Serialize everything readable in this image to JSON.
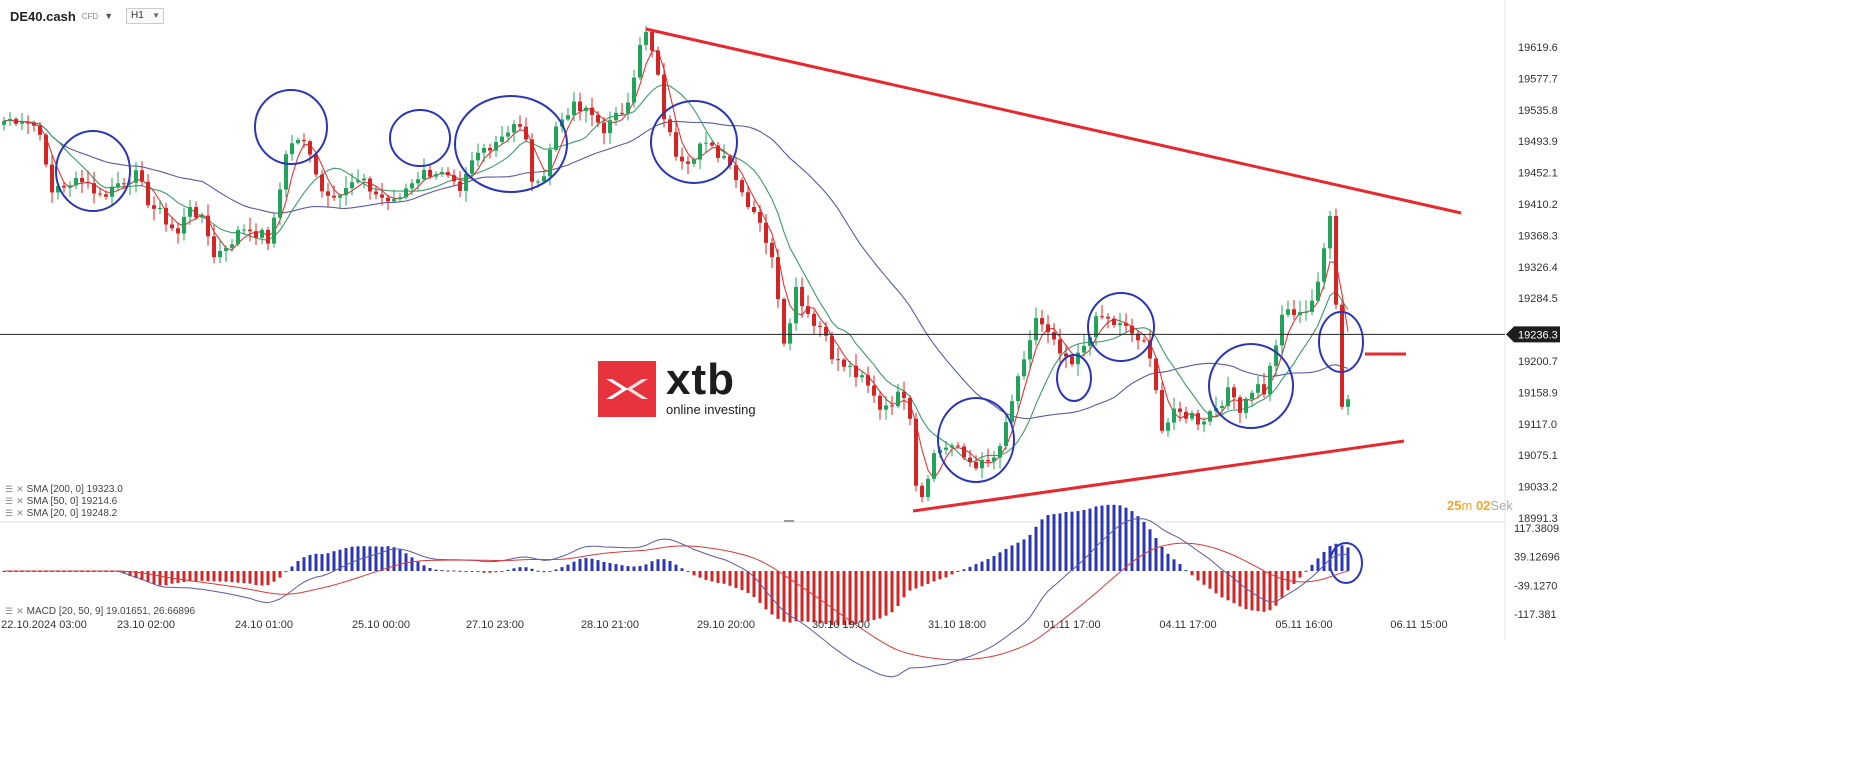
{
  "header": {
    "symbol": "DE40.cash",
    "instrument_type": "CFD",
    "timeframe": "H1"
  },
  "logo": {
    "brand": "xtb",
    "tagline": "online investing"
  },
  "indicators": [
    {
      "label": "SMA [200, 0] 19323.0",
      "color": "#5a5aa8"
    },
    {
      "label": "SMA [50, 0] 19214.6",
      "color": "#3d9a6a"
    },
    {
      "label": "SMA [20, 0] 19248.2",
      "color": "#d93a3a"
    }
  ],
  "macd_label": "MACD [20, 50, 9] 19.01651, 26.66896",
  "timer": {
    "minutes": "25",
    "m_unit": "m",
    "seconds": "02",
    "s_unit": "Sek"
  },
  "current_price": "19236.3",
  "colors": {
    "bull": "#22a35a",
    "bear": "#d42424",
    "annotation_line": "#e8282f",
    "annotation_circle": "#2a35b8",
    "price_tag": "#1e1e1e"
  },
  "chart_data": {
    "type": "candlestick",
    "price_axis": {
      "ticks": [
        "19619.6",
        "19577.7",
        "19535.8",
        "19493.9",
        "19452.1",
        "19410.2",
        "19368.3",
        "19326.4",
        "19284.5",
        "19200.7",
        "19158.9",
        "19117.0",
        "19075.1",
        "19033.2",
        "18991.3"
      ],
      "range": [
        18991.3,
        19647
      ]
    },
    "time_axis": {
      "ticks": [
        "22.10.2024  03:00",
        "23.10  02:00",
        "24.10  01:00",
        "25.10  00:00",
        "27.10  23:00",
        "28.10  21:00",
        "29.10  20:00",
        "30.10  19:00",
        "31.10  18:00",
        "01.11  17:00",
        "04.11  17:00",
        "05.11  16:00",
        "06.11  15:00"
      ]
    },
    "macd_axis": {
      "ticks": [
        "117.3809",
        "39.12696",
        "-39.1270",
        "-117.381"
      ],
      "range": [
        -117.381,
        117.3809
      ]
    },
    "price_waypoints": [
      [
        0,
        19520
      ],
      [
        20,
        19525
      ],
      [
        40,
        19510
      ],
      [
        50,
        19420
      ],
      [
        60,
        19440
      ],
      [
        70,
        19430
      ],
      [
        80,
        19450
      ],
      [
        100,
        19420
      ],
      [
        110,
        19430
      ],
      [
        120,
        19440
      ],
      [
        135,
        19450
      ],
      [
        150,
        19410
      ],
      [
        165,
        19390
      ],
      [
        178,
        19370
      ],
      [
        190,
        19410
      ],
      [
        205,
        19380
      ],
      [
        215,
        19340
      ],
      [
        230,
        19360
      ],
      [
        245,
        19380
      ],
      [
        260,
        19370
      ],
      [
        270,
        19360
      ],
      [
        278,
        19410
      ],
      [
        285,
        19480
      ],
      [
        300,
        19500
      ],
      [
        315,
        19460
      ],
      [
        325,
        19420
      ],
      [
        340,
        19430
      ],
      [
        360,
        19440
      ],
      [
        380,
        19420
      ],
      [
        395,
        19410
      ],
      [
        410,
        19440
      ],
      [
        420,
        19450
      ],
      [
        435,
        19455
      ],
      [
        450,
        19440
      ],
      [
        460,
        19420
      ],
      [
        470,
        19460
      ],
      [
        480,
        19480
      ],
      [
        500,
        19500
      ],
      [
        515,
        19520
      ],
      [
        525,
        19500
      ],
      [
        535,
        19420
      ],
      [
        545,
        19460
      ],
      [
        555,
        19510
      ],
      [
        570,
        19540
      ],
      [
        590,
        19530
      ],
      [
        605,
        19510
      ],
      [
        620,
        19530
      ],
      [
        630,
        19560
      ],
      [
        638,
        19610
      ],
      [
        645,
        19640
      ],
      [
        655,
        19600
      ],
      [
        665,
        19520
      ],
      [
        675,
        19480
      ],
      [
        690,
        19470
      ],
      [
        700,
        19490
      ],
      [
        715,
        19480
      ],
      [
        730,
        19470
      ],
      [
        740,
        19430
      ],
      [
        760,
        19390
      ],
      [
        775,
        19320
      ],
      [
        785,
        19220
      ],
      [
        795,
        19300
      ],
      [
        810,
        19260
      ],
      [
        825,
        19240
      ],
      [
        835,
        19200
      ],
      [
        850,
        19190
      ],
      [
        865,
        19170
      ],
      [
        880,
        19140
      ],
      [
        895,
        19150
      ],
      [
        905,
        19160
      ],
      [
        912,
        19120
      ],
      [
        918,
        19000
      ],
      [
        925,
        19040
      ],
      [
        935,
        19080
      ],
      [
        950,
        19090
      ],
      [
        965,
        19070
      ],
      [
        985,
        19060
      ],
      [
        1000,
        19080
      ],
      [
        1010,
        19140
      ],
      [
        1025,
        19200
      ],
      [
        1035,
        19260
      ],
      [
        1045,
        19240
      ],
      [
        1055,
        19220
      ],
      [
        1070,
        19190
      ],
      [
        1080,
        19210
      ],
      [
        1090,
        19240
      ],
      [
        1100,
        19260
      ],
      [
        1115,
        19250
      ],
      [
        1130,
        19240
      ],
      [
        1145,
        19220
      ],
      [
        1155,
        19180
      ],
      [
        1162,
        19110
      ],
      [
        1175,
        19130
      ],
      [
        1190,
        19130
      ],
      [
        1200,
        19120
      ],
      [
        1215,
        19140
      ],
      [
        1230,
        19160
      ],
      [
        1240,
        19140
      ],
      [
        1255,
        19170
      ],
      [
        1265,
        19160
      ],
      [
        1275,
        19220
      ],
      [
        1285,
        19270
      ],
      [
        1300,
        19260
      ],
      [
        1315,
        19290
      ],
      [
        1325,
        19350
      ],
      [
        1332,
        19410
      ],
      [
        1338,
        19220
      ],
      [
        1345,
        19090
      ],
      [
        1352,
        19230
      ]
    ]
  }
}
